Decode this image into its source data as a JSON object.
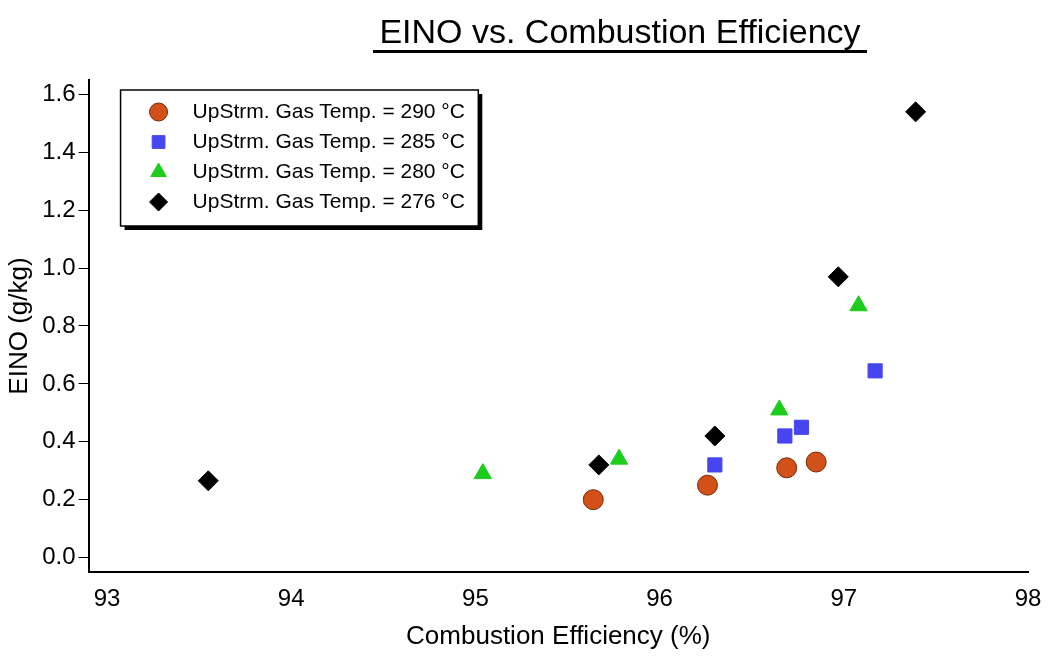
{
  "chart_data": {
    "type": "scatter",
    "title": "EINO vs. Combustion Efficiency",
    "xlabel": "Combustion Efficiency (%)",
    "ylabel": "EINO (g/kg)",
    "xlim": [
      92.9,
      98
    ],
    "xticks": [
      93,
      94,
      95,
      96,
      97,
      98
    ],
    "ylim": [
      -0.05,
      1.65
    ],
    "yticks": [
      {
        "value": 0,
        "label": "0.0"
      },
      {
        "value": 0.2,
        "label": "0.2"
      },
      {
        "value": 0.4,
        "label": "0.4"
      },
      {
        "value": 0.6,
        "label": "0.6"
      },
      {
        "value": 0.8,
        "label": "0.8"
      },
      {
        "value": 1,
        "label": "1.0"
      },
      {
        "value": 1.2,
        "label": "1.2"
      },
      {
        "value": 1.4,
        "label": "1.4"
      },
      {
        "value": 1.6,
        "label": "1.6"
      }
    ],
    "grid": false,
    "legend": "top left",
    "series": [
      {
        "name": "UpStrm. Gas Temp. = 290 °C",
        "color": "#d2501a",
        "marker": "circle",
        "x": [
          95.64,
          96.26,
          96.69,
          96.85
        ],
        "values": [
          0.2,
          0.25,
          0.31,
          0.33
        ]
      },
      {
        "name": "UpStrm. Gas Temp. = 285 °C",
        "color": "#4646f0",
        "marker": "square",
        "x": [
          96.3,
          96.68,
          96.77,
          97.17
        ],
        "values": [
          0.32,
          0.42,
          0.45,
          0.645
        ]
      },
      {
        "name": "UpStrm. Gas Temp. = 280 °C",
        "color": "#1ecc1e",
        "marker": "triangle",
        "x": [
          95.04,
          95.78,
          96.65,
          97.08
        ],
        "values": [
          0.29,
          0.34,
          0.51,
          0.87
        ]
      },
      {
        "name": "UpStrm. Gas Temp. = 276 °C",
        "color": "#000000",
        "marker": "diamond",
        "x": [
          93.55,
          95.67,
          96.3,
          96.97,
          97.39
        ],
        "values": [
          0.265,
          0.32,
          0.42,
          0.97,
          1.54
        ]
      }
    ]
  }
}
